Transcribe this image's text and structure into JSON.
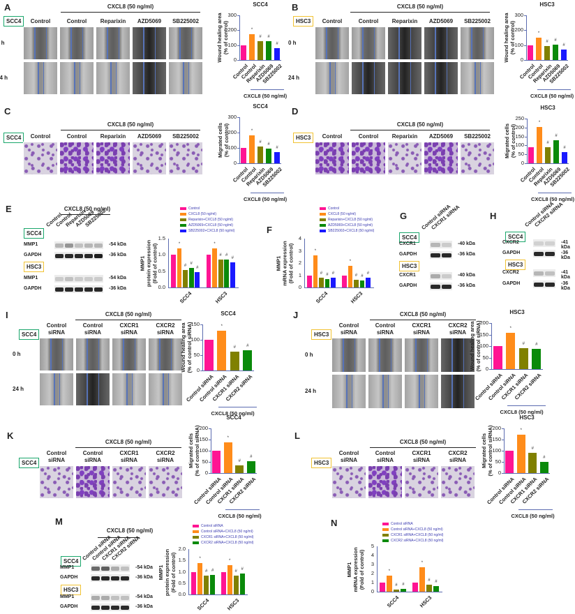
{
  "common": {
    "cxcl8": "CXCL8 (50 ng/ml)",
    "h0": "0 h",
    "h24": "24 h",
    "scc4": "SCC4",
    "hsc3": "HSC3",
    "mmp1": "MMP1",
    "gapdh": "GAPDH",
    "cxcr1": "CXCR1",
    "cxcr2": "CXCR2",
    "kda54": "-54 kDa",
    "kda36": "-36 kDa",
    "kda40": "-40 kDa",
    "kda41": "-41 kDa",
    "control": "Control",
    "reparixin": "Reparixin",
    "azd": "AZD5069",
    "sb": "SB225002",
    "control_sirna": "Control siRNA",
    "cxcr1_sirna": "CXCR1 siRNA",
    "cxcr2_sirna": "CXCR2 siRNA",
    "control_l1": "Control",
    "sirna_l2": "siRNA",
    "cxcr1_l1": "CXCR1",
    "cxcr2_l1": "CXCR2"
  },
  "colors": {
    "pink": "#ff1493",
    "orange": "#ff8c1a",
    "olive": "#808000",
    "green": "#0a8a0a",
    "blue": "#1a1aff",
    "scc4_box": "#1aa66b",
    "hsc3_box": "#f1c232",
    "axis": "#5b6bb0"
  },
  "panels": {
    "A": {
      "label": "A",
      "cell": "SCC4"
    },
    "B": {
      "label": "B",
      "cell": "HSC3"
    },
    "C": {
      "label": "C",
      "cell": "SCC4"
    },
    "D": {
      "label": "D",
      "cell": "HSC3"
    },
    "E": {
      "label": "E"
    },
    "F": {
      "label": "F"
    },
    "G": {
      "label": "G"
    },
    "H": {
      "label": "H"
    },
    "I": {
      "label": "I",
      "cell": "SCC4"
    },
    "J": {
      "label": "J",
      "cell": "HSC3"
    },
    "K": {
      "label": "K",
      "cell": "SCC4"
    },
    "L": {
      "label": "L",
      "cell": "HSC3"
    },
    "M": {
      "label": "M"
    },
    "N": {
      "label": "N"
    }
  },
  "legends": {
    "E": [
      "Control",
      "CXCL8 (50 ng/ml)",
      "Reparixin+CXCL8 (50 ng/ml)",
      "AZD5069+CXCL8 (50 ng/ml)",
      "SB225002+CXCL8 (50 ng/ml)"
    ],
    "M": [
      "Control siRNA",
      "Control siRNA+CXCL8 (50 ng/ml)",
      "CXCR1 siRNA+CXCL8 (50 ng/ml)",
      "CXCR2 siRNA+CXCL8 (50 ng/ml)"
    ]
  },
  "axis_labels": {
    "wound": "Wound healing area",
    "pct_control": "(% of control)",
    "migrated": "Migrated cells",
    "pct_sirna": "(% of control siRNA)",
    "mmp1": "MMP1",
    "protein": "protein expression",
    "mrna": "mRNA expression",
    "fold": "(Fold of control)"
  },
  "chart_data": [
    {
      "panel": "A",
      "type": "bar",
      "title": "SCC4",
      "ylabel": "Wound healing area (% of control)",
      "ylim": [
        0,
        300
      ],
      "yticks": [
        0,
        100,
        200,
        300
      ],
      "categories": [
        "Control",
        "Control",
        "Reparixin",
        "AZD5069",
        "SB225002"
      ],
      "values": [
        100,
        175,
        128,
        128,
        80
      ],
      "significance": [
        "",
        "*",
        "#",
        "#",
        "#"
      ],
      "group_label": "CXCL8 (50 ng/ml)"
    },
    {
      "panel": "B",
      "type": "bar",
      "title": "HSC3",
      "ylabel": "Wound healing area (% of control)",
      "ylim": [
        0,
        300
      ],
      "yticks": [
        0,
        100,
        200,
        300
      ],
      "categories": [
        "Control",
        "Control",
        "Reparixin",
        "AZD5069",
        "SB225002"
      ],
      "values": [
        100,
        152,
        95,
        103,
        70
      ],
      "significance": [
        "",
        "*",
        "#",
        "#",
        "#"
      ],
      "group_label": "CXCL8 (50 ng/ml)"
    },
    {
      "panel": "C",
      "type": "bar",
      "title": "SCC4",
      "ylabel": "Migrated cells (% of control)",
      "ylim": [
        0,
        300
      ],
      "yticks": [
        0,
        100,
        200,
        300
      ],
      "categories": [
        "Control",
        "Control",
        "Reparixin",
        "AZD5069",
        "SB225002"
      ],
      "values": [
        100,
        183,
        107,
        97,
        75
      ],
      "significance": [
        "",
        "*",
        "#",
        "#",
        "#"
      ],
      "group_label": "CXCL8 (50 ng/ml)"
    },
    {
      "panel": "D",
      "type": "bar",
      "title": "HSC3",
      "ylabel": "Migrated cells (% of control)",
      "ylim": [
        0,
        250
      ],
      "yticks": [
        0,
        50,
        100,
        150,
        200,
        250
      ],
      "categories": [
        "Control",
        "Control",
        "Reparixin",
        "AZD5069",
        "SB225002"
      ],
      "values": [
        88,
        202,
        88,
        130,
        62
      ],
      "significance": [
        "",
        "*",
        "#",
        "#",
        "#"
      ],
      "group_label": "CXCL8 (50 ng/ml)"
    },
    {
      "panel": "E",
      "type": "bar",
      "ylabel": "MMP1 protein expression (Fold of control)",
      "ylim": [
        0,
        1.5
      ],
      "yticks": [
        0.0,
        0.5,
        1.0,
        1.5
      ],
      "categories": [
        "SCC4",
        "HSC3"
      ],
      "series": [
        {
          "name": "Control",
          "values": [
            1.0,
            1.0
          ]
        },
        {
          "name": "CXCL8 (50 ng/ml)",
          "values": [
            1.2,
            1.19
          ]
        },
        {
          "name": "Reparixin+CXCL8 (50 ng/ml)",
          "values": [
            0.53,
            0.86
          ]
        },
        {
          "name": "AZD5069+CXCL8 (50 ng/ml)",
          "values": [
            0.6,
            0.85
          ]
        },
        {
          "name": "SB225002+CXCL8 (50 ng/ml)",
          "values": [
            0.47,
            0.78
          ]
        }
      ]
    },
    {
      "panel": "F",
      "type": "bar",
      "ylabel": "MMP1 mRNA expression (Fold of control)",
      "ylim": [
        0,
        4
      ],
      "yticks": [
        0,
        1,
        2,
        3,
        4
      ],
      "categories": [
        "SCC4",
        "HSC3"
      ],
      "series": [
        {
          "name": "Control",
          "values": [
            1.0,
            1.0
          ]
        },
        {
          "name": "CXCL8 (50 ng/ml)",
          "values": [
            2.65,
            1.75
          ]
        },
        {
          "name": "Reparixin+CXCL8 (50 ng/ml)",
          "values": [
            0.8,
            0.65
          ]
        },
        {
          "name": "AZD5069+CXCL8 (50 ng/ml)",
          "values": [
            0.7,
            0.6
          ]
        },
        {
          "name": "SB225002+CXCL8 (50 ng/ml)",
          "values": [
            0.8,
            0.8
          ]
        }
      ]
    },
    {
      "panel": "I",
      "type": "bar",
      "title": "SCC4",
      "ylabel": "Wound healing area (% of control siRNA)",
      "ylim": [
        0,
        150
      ],
      "yticks": [
        0,
        50,
        100,
        150
      ],
      "categories": [
        "Control siRNA",
        "Control siRNA",
        "CXCR1 siRNA",
        "CXCR2 siRNA"
      ],
      "values": [
        100,
        130,
        62,
        66
      ],
      "significance": [
        "",
        "*",
        "#",
        "#"
      ],
      "group_label": "CXCL8 (50 ng/ml)"
    },
    {
      "panel": "J",
      "type": "bar",
      "title": "HSC3",
      "ylabel": "Wound healing area (% of control siRNA)",
      "ylim": [
        0,
        200
      ],
      "yticks": [
        0,
        50,
        100,
        150,
        200
      ],
      "categories": [
        "Control siRNA",
        "Control siRNA",
        "CXCR1 siRNA",
        "CXCR2 siRNA"
      ],
      "values": [
        100,
        158,
        92,
        88
      ],
      "significance": [
        "",
        "*",
        "#",
        "#"
      ],
      "group_label": "CXCL8 (50 ng/ml)"
    },
    {
      "panel": "K",
      "type": "bar",
      "title": "SCC4",
      "ylabel": "Migrated cells (% of control siRNA)",
      "ylim": [
        0,
        200
      ],
      "yticks": [
        0,
        50,
        100,
        150,
        200
      ],
      "categories": [
        "Control siRNA",
        "Control siRNA",
        "CXCR1 siRNA",
        "CXCR2 siRNA"
      ],
      "values": [
        100,
        136,
        33,
        52
      ],
      "significance": [
        "",
        "*",
        "#",
        "#"
      ],
      "group_label": "CXCL8 (50 ng/ml)"
    },
    {
      "panel": "L",
      "type": "bar",
      "title": "HSC3",
      "ylabel": "Migrated cells (% of control siRNA)",
      "ylim": [
        0,
        200
      ],
      "yticks": [
        0,
        50,
        100,
        150,
        200
      ],
      "categories": [
        "Control siRNA",
        "Control siRNA",
        "CXCR1 siRNA",
        "CXCR2 siRNA"
      ],
      "values": [
        100,
        173,
        92,
        50
      ],
      "significance": [
        "",
        "*",
        "#",
        "#"
      ],
      "group_label": "CXCL8 (50 ng/ml)"
    },
    {
      "panel": "M",
      "type": "bar",
      "ylabel": "MMP1 protein expression (Fold of control)",
      "ylim": [
        0,
        2.0
      ],
      "yticks": [
        0.0,
        0.5,
        1.0,
        1.5,
        2.0
      ],
      "categories": [
        "SCC4",
        "HSC3"
      ],
      "series": [
        {
          "name": "Control siRNA",
          "values": [
            1.0,
            1.0
          ]
        },
        {
          "name": "Control siRNA+CXCL8 (50 ng/ml)",
          "values": [
            1.38,
            1.28
          ]
        },
        {
          "name": "CXCR1 siRNA+CXCL8 (50 ng/ml)",
          "values": [
            0.82,
            0.82
          ]
        },
        {
          "name": "CXCR2 siRNA+CXCL8 (50 ng/ml)",
          "values": [
            0.85,
            0.92
          ]
        }
      ]
    },
    {
      "panel": "N",
      "type": "bar",
      "ylabel": "MMP1 mRNA expression (Fold of control)",
      "ylim": [
        0,
        5
      ],
      "yticks": [
        0,
        1,
        2,
        3,
        4,
        5
      ],
      "categories": [
        "SCC4",
        "HSC3"
      ],
      "series": [
        {
          "name": "Control siRNA",
          "values": [
            1.0,
            1.0
          ]
        },
        {
          "name": "Control siRNA+CXCL8 (50 ng/ml)",
          "values": [
            1.75,
            2.7
          ]
        },
        {
          "name": "CXCR1 siRNA+CXCL8 (50 ng/ml)",
          "values": [
            0.25,
            0.75
          ]
        },
        {
          "name": "CXCR2 siRNA+CXCL8 (50 ng/ml)",
          "values": [
            0.3,
            0.6
          ]
        }
      ]
    }
  ]
}
